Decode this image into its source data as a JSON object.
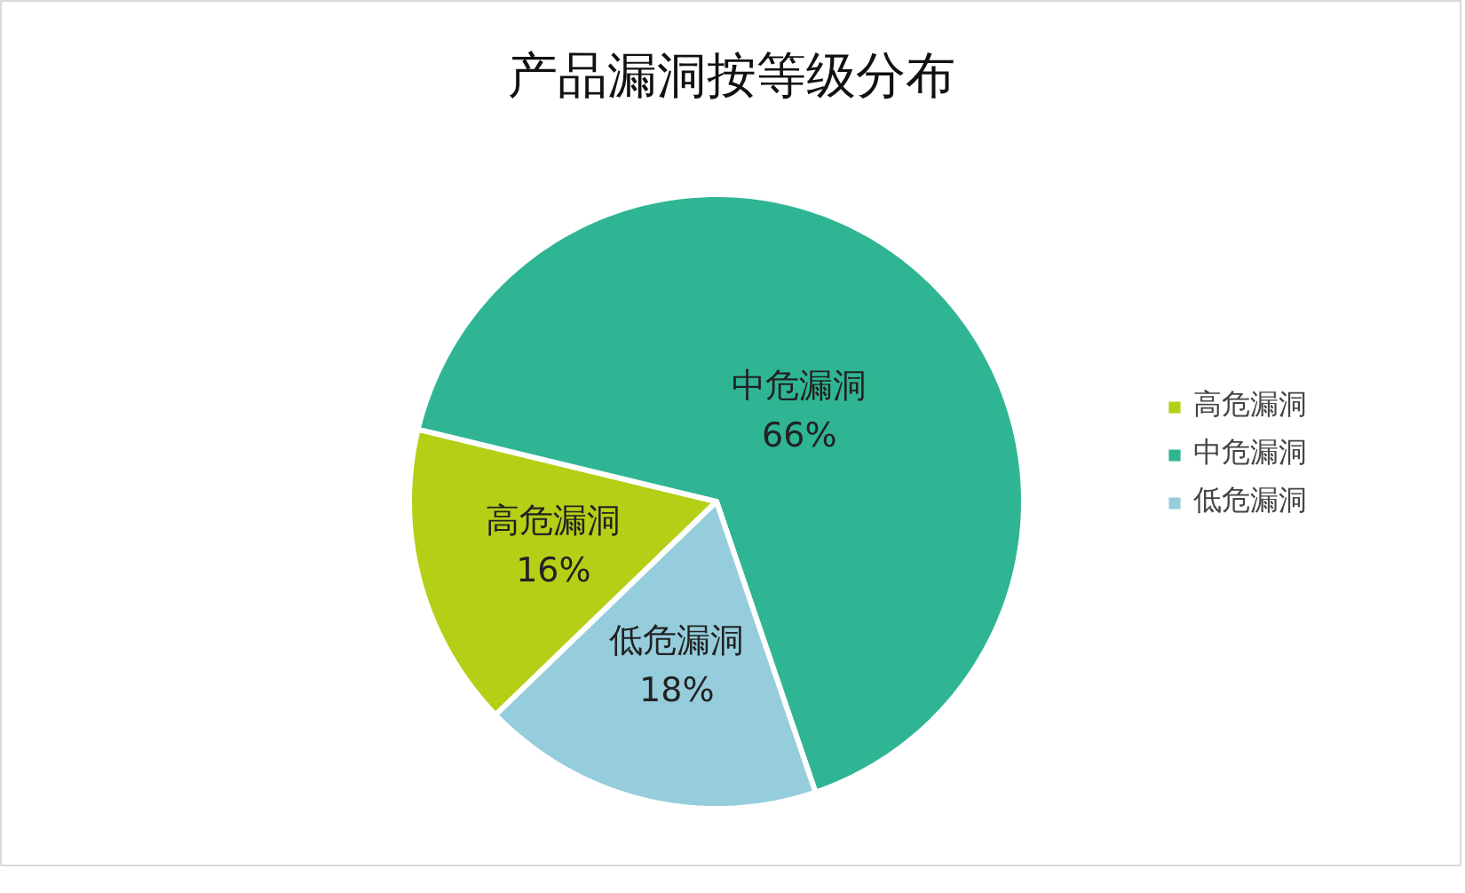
{
  "chart_data": {
    "type": "pie",
    "title": "产品漏洞按等级分布",
    "categories": [
      "高危漏洞",
      "中危漏洞",
      "低危漏洞"
    ],
    "values": [
      16,
      66,
      18
    ],
    "value_labels": [
      "16%",
      "66%",
      "18%"
    ],
    "colors": [
      "#b5cf16",
      "#2fb593",
      "#96cddc"
    ],
    "legend": "right"
  }
}
